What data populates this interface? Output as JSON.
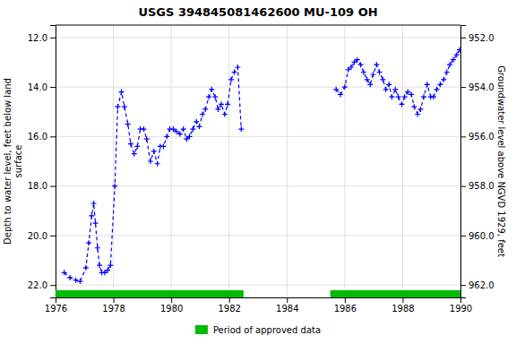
{
  "chart_data": {
    "type": "line",
    "title": "USGS 394845081462600 MU-109 OH",
    "ylabel": "Depth to water level, feet below land\nsurface",
    "y2label": "Groundwater level above NGVD 1929, feet",
    "xlim": [
      1976,
      1990
    ],
    "xticks": [
      1976,
      1978,
      1980,
      1982,
      1984,
      1986,
      1988,
      1990
    ],
    "ylim": [
      22.5,
      11.5
    ],
    "yticks": [
      {
        "value": 12.0,
        "label": "12.0"
      },
      {
        "value": 14.0,
        "label": "14.0"
      },
      {
        "value": 16.0,
        "label": "16.0"
      },
      {
        "value": 18.0,
        "label": "18.0"
      },
      {
        "value": 20.0,
        "label": "20.0"
      },
      {
        "value": 22.0,
        "label": "22.0"
      }
    ],
    "y2lim": [
      962.5,
      951.5
    ],
    "y2ticks": [
      {
        "value": 962.0,
        "label": "962.0"
      },
      {
        "value": 960.0,
        "label": "960.0"
      },
      {
        "value": 958.0,
        "label": "958.0"
      },
      {
        "value": 956.0,
        "label": "956.0"
      },
      {
        "value": 954.0,
        "label": "954.0"
      },
      {
        "value": 952.0,
        "label": "952.0"
      }
    ],
    "grid": true,
    "legend": "bottom",
    "series": [
      {
        "color": "#0000ff",
        "marker": "plus",
        "line_style": "dashed",
        "x": [
          1976.3,
          1976.5,
          1976.7,
          1976.85,
          1977.05,
          1977.15,
          1977.25,
          1977.32,
          1977.38,
          1977.45,
          1977.52,
          1977.6,
          1977.7,
          1977.8,
          1977.9,
          1978.05,
          1978.15,
          1978.28,
          1978.38,
          1978.5,
          1978.6,
          1978.72,
          1978.83,
          1978.93,
          1979.05,
          1979.15,
          1979.28,
          1979.4,
          1979.52,
          1979.62,
          1979.73,
          1979.85,
          1979.95,
          1980.07,
          1980.18,
          1980.3,
          1980.42,
          1980.53,
          1980.63,
          1980.75,
          1980.87,
          1980.97,
          1981.08,
          1981.18,
          1981.3,
          1981.4,
          1981.52,
          1981.62,
          1981.73,
          1981.85,
          1981.95,
          1982.07,
          1982.18,
          1982.3,
          1982.42
        ],
        "values": [
          21.5,
          21.7,
          21.8,
          21.85,
          21.3,
          20.3,
          19.2,
          18.7,
          19.5,
          20.5,
          21.2,
          21.5,
          21.5,
          21.4,
          21.2,
          18.0,
          14.8,
          14.2,
          14.8,
          15.5,
          16.3,
          16.7,
          16.4,
          15.7,
          15.7,
          16.1,
          17.0,
          16.6,
          17.1,
          16.4,
          16.4,
          16.0,
          15.7,
          15.7,
          15.8,
          15.9,
          15.7,
          16.1,
          16.0,
          15.7,
          15.4,
          15.6,
          15.1,
          14.9,
          14.4,
          14.1,
          14.4,
          14.9,
          14.7,
          15.1,
          14.7,
          13.7,
          13.4,
          13.2,
          15.7
        ]
      },
      {
        "color": "#0000ff",
        "marker": "plus",
        "line_style": "dashed",
        "x": [
          1985.7,
          1985.85,
          1986.0,
          1986.12,
          1986.22,
          1986.33,
          1986.43,
          1986.55,
          1986.65,
          1986.77,
          1986.88,
          1986.98,
          1987.1,
          1987.2,
          1987.32,
          1987.42,
          1987.53,
          1987.63,
          1987.75,
          1987.85,
          1987.97,
          1988.07,
          1988.18,
          1988.3,
          1988.4,
          1988.52,
          1988.62,
          1988.73,
          1988.85,
          1988.97,
          1989.07,
          1989.18,
          1989.3,
          1989.42,
          1989.53,
          1989.63,
          1989.75,
          1989.87,
          1989.97
        ],
        "values": [
          14.1,
          14.3,
          14.0,
          13.3,
          13.2,
          13.0,
          12.9,
          13.1,
          13.4,
          13.7,
          13.9,
          13.5,
          13.1,
          13.4,
          13.7,
          14.1,
          13.9,
          14.4,
          14.1,
          14.4,
          14.7,
          14.4,
          14.2,
          14.3,
          14.8,
          15.1,
          14.9,
          14.4,
          13.9,
          14.4,
          14.4,
          14.1,
          13.9,
          13.7,
          13.4,
          13.1,
          12.9,
          12.7,
          12.5
        ]
      }
    ],
    "approved": {
      "name": "Period of approved data",
      "color": "#00bb00",
      "periods": [
        [
          1976.0,
          1982.5
        ],
        [
          1985.5,
          1990.0
        ]
      ]
    }
  }
}
